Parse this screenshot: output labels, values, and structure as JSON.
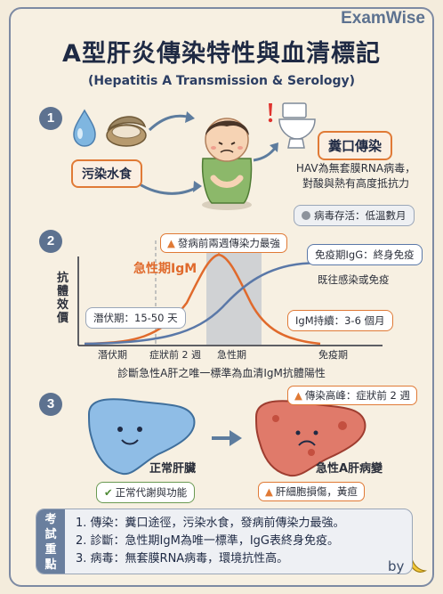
{
  "brand": "ExamWise",
  "title": "A型肝炎傳染特性與血清標記",
  "subtitle": "(Hepatitis A Transmission & Serology)",
  "section1": {
    "number": "1",
    "food_label": "污染水食",
    "route_label": "糞口傳染",
    "virus_note_line1": "HAV為無套膜RNA病毒，",
    "virus_note_line2": "對酸與熱有高度抵抗力",
    "survival_chip": "病毒存活：低溫數月"
  },
  "section2": {
    "number": "2",
    "y_axis_label": [
      "抗",
      "體",
      "效",
      "價"
    ],
    "peak_warning": "發病前兩週傳染力最強",
    "igm_label": "急性期IgM",
    "igg_box": "免疫期IgG：終身免疫",
    "igg_note": "既往感染或免疫",
    "incubation_box": "潛伏期：15-50 天",
    "igm_duration_box": "IgM持續：3-6 個月",
    "x_phases": [
      "潛伏期",
      "症狀前 2 週",
      "急性期",
      "免疫期"
    ],
    "caption": "診斷急性A肝之唯一標準為血清IgM抗體陽性"
  },
  "section3": {
    "number": "3",
    "normal_label": "正常肝臟",
    "normal_chip": "正常代謝與功能",
    "diseased_label": "急性A肝病變",
    "peak_chip": "傳染高峰：症狀前 2 週",
    "damage_chip": "肝細胞損傷，黃疸"
  },
  "summary": {
    "side_label": [
      "考",
      "試",
      "重",
      "點"
    ],
    "lines": [
      "1. 傳染：糞口途徑，污染水食，發病前傳染力最強。",
      "2. 診斷：急性期IgM為唯一標準，IgG表終身免疫。",
      "3. 病毒：無套膜RNA病毒，環境抗性高。"
    ]
  },
  "signature": "by",
  "colors": {
    "accent_orange": "#e07a36",
    "igm_curve": "#e06a2c",
    "igg_curve": "#5a78a8",
    "frame_blue": "#5d7290",
    "acute_band": "#c9ccd1"
  },
  "chart_data": {
    "type": "line",
    "x": [
      "潛伏期",
      "症狀前 2 週",
      "急性期",
      "免疫期"
    ],
    "series": [
      {
        "name": "急性期IgM",
        "values": [
          0,
          0.2,
          1.0,
          0.05
        ]
      },
      {
        "name": "免疫期IgG",
        "values": [
          0,
          0.05,
          0.55,
          0.95
        ]
      }
    ],
    "ylabel": "抗體效價",
    "grid": false
  },
  "icons": [
    "water-drop-icon",
    "oyster-icon",
    "sick-child-icon",
    "toilet-icon",
    "exclamation-icon",
    "warning-icon",
    "check-icon",
    "liver-icon",
    "banana-icon"
  ]
}
